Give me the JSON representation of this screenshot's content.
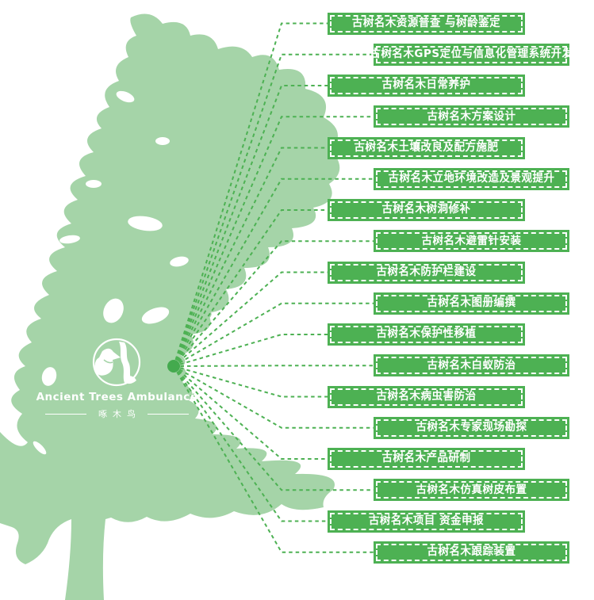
{
  "logo": {
    "title": "Ancient Trees Ambulance",
    "subtitle": "啄木鸟",
    "icon": "woodpecker-in-circle"
  },
  "services": [
    "古树名木资源普查 与树龄鉴定",
    "古树名木GPS定位与信息化管理系统开发",
    "古树名木日常养护",
    "古树名木方案设计",
    "古树名木土壤改良及配方施肥",
    "古树名木立地环境改造及景观提升",
    "古树名木树洞修补",
    "古树名木避雷针安装",
    "古树名木防护栏建设",
    "古树名木图册编撰",
    "古树名木保护性移植",
    "古树名木白蚁防治",
    "古树名木病虫害防治",
    "古树名木专家现场勘探",
    "古树名木产品研制",
    "古树名木仿真树皮布置",
    "古树名木项目 资金申报",
    "古树名木跟踪装置"
  ],
  "colors": {
    "canopy": "#a5d4a8",
    "accent": "#4db153",
    "dot": "#44aa4e",
    "label_text": "#ffffff"
  }
}
